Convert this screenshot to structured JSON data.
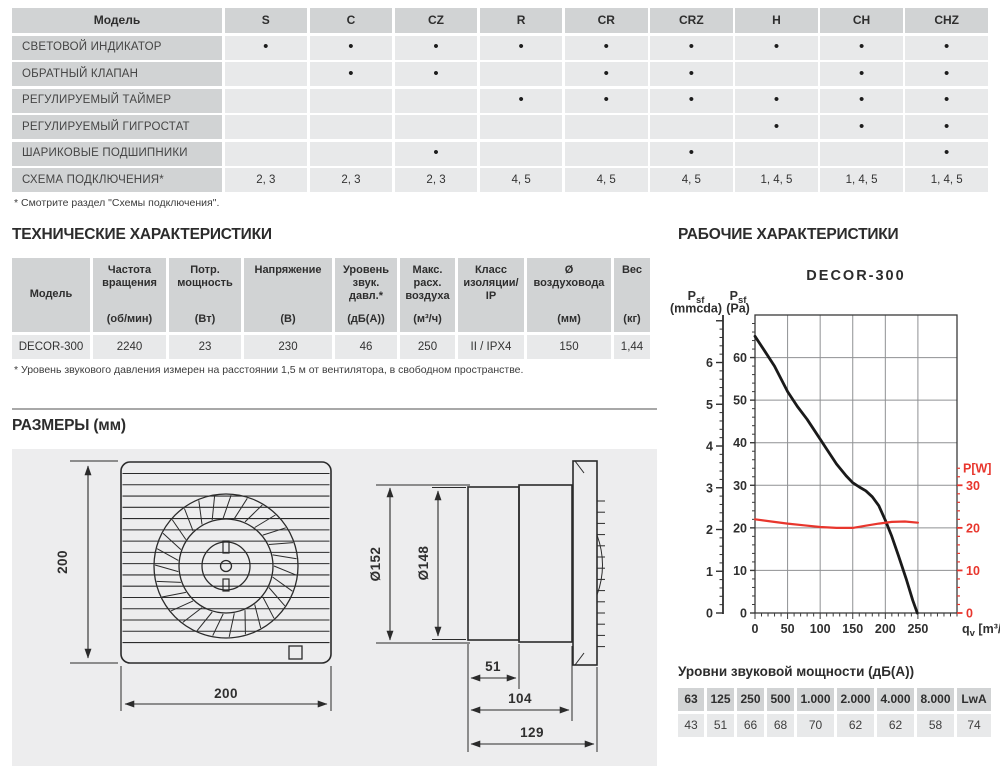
{
  "features_table": {
    "columns": [
      "Модель",
      "S",
      "C",
      "CZ",
      "R",
      "CR",
      "CRZ",
      "H",
      "CH",
      "CHZ"
    ],
    "bullet": "•",
    "rows": [
      {
        "label": "СВЕТОВОЙ ИНДИКАТОР",
        "cells": [
          "•",
          "•",
          "•",
          "•",
          "•",
          "•",
          "•",
          "•",
          "•"
        ]
      },
      {
        "label": "ОБРАТНЫЙ КЛАПАН",
        "cells": [
          "",
          "•",
          "•",
          "",
          "•",
          "•",
          "",
          "•",
          "•"
        ]
      },
      {
        "label": "РЕГУЛИРУЕМЫЙ ТАЙМЕР",
        "cells": [
          "",
          "",
          "",
          "•",
          "•",
          "•",
          "•",
          "•",
          "•"
        ]
      },
      {
        "label": "РЕГУЛИРУЕМЫЙ ГИГРОСТАТ",
        "cells": [
          "",
          "",
          "",
          "",
          "",
          "",
          "•",
          "•",
          "•"
        ]
      },
      {
        "label": "ШАРИКОВЫЕ ПОДШИПНИКИ",
        "cells": [
          "",
          "",
          "•",
          "",
          "",
          "•",
          "",
          "",
          "•"
        ]
      },
      {
        "label": "СХЕМА ПОДКЛЮЧЕНИЯ*",
        "cells": [
          "2, 3",
          "2, 3",
          "2, 3",
          "4, 5",
          "4, 5",
          "4, 5",
          "1, 4, 5",
          "1, 4, 5",
          "1, 4, 5"
        ]
      }
    ]
  },
  "footnotes": {
    "wiring": "* Смотрите раздел \"Схемы подключения\".",
    "sound_pressure": "* Уровень звукового давления измерен на расстоянии 1,5 м от вентилятора, в свободном пространстве."
  },
  "tech": {
    "heading": "ТЕХНИЧЕСКИЕ ХАРАКТЕРИСТИКИ",
    "columns": [
      {
        "title": "Модель",
        "unit": "",
        "valign": "center"
      },
      {
        "title": "Частота вращения",
        "unit": "(об/мин)",
        "valign": "between"
      },
      {
        "title": "Потр. мощность",
        "unit": "(Вт)",
        "valign": "between"
      },
      {
        "title": "Напряжение",
        "unit": "(В)",
        "valign": "between"
      },
      {
        "title": "Уровень звук. давл.*",
        "unit": "(дБ(А))",
        "valign": "between"
      },
      {
        "title": "Макс. расх. воздуха",
        "unit": "(м³/ч)",
        "valign": "between"
      },
      {
        "title": "Класс изоляции/ IP",
        "unit": "",
        "valign": "top"
      },
      {
        "title": "Ø воздуховода",
        "unit": "(мм)",
        "valign": "between"
      },
      {
        "title": "Вес",
        "unit": "(кг)",
        "valign": "between"
      }
    ],
    "row": [
      "DECOR-300",
      "2240",
      "23",
      "230",
      "46",
      "250",
      "II / IPX4",
      "150",
      "1,44"
    ]
  },
  "dimensions": {
    "heading": "РАЗМЕРЫ (мм)",
    "front_height": "200",
    "front_width": "200",
    "dia_outer": "Ø152",
    "dia_inner": "Ø148",
    "len_tube": "51",
    "len_body": "104",
    "len_total": "129"
  },
  "performance": {
    "heading": "РАБОЧИЕ ХАРАКТЕРИСТИКИ"
  },
  "chart_data": {
    "type": "line",
    "title": "DECOR-300",
    "grid": true,
    "legend": false,
    "x_axis": {
      "label": "qv [m³/h]",
      "ticks": [
        0,
        50,
        100,
        150,
        200,
        250
      ],
      "minor_step": 10,
      "max": 310
    },
    "pa_axis": {
      "label": "Psf [Pa]",
      "ticks": [
        0,
        10,
        20,
        30,
        40,
        50,
        60
      ],
      "minor_step": 2,
      "max": 70
    },
    "mm_axis": {
      "label": "Psf [mmcda]",
      "ticks": [
        0,
        1,
        2,
        3,
        4,
        5,
        6
      ],
      "minor_step": 0.2,
      "pa_per_unit": 9.80665
    },
    "power_axis": {
      "label": "P[W]",
      "ticks": [
        0,
        10,
        20,
        30
      ],
      "minor_step": 2,
      "color": "#e8362d",
      "scale": "same-as-pa"
    },
    "series": [
      {
        "name": "Psf",
        "unit": "Pa",
        "color": "#1a1a1a",
        "width": 2.8,
        "points": [
          [
            0,
            65
          ],
          [
            15,
            61.5
          ],
          [
            30,
            58
          ],
          [
            50,
            52
          ],
          [
            65,
            48.5
          ],
          [
            80,
            45.5
          ],
          [
            95,
            42
          ],
          [
            110,
            38.5
          ],
          [
            125,
            35
          ],
          [
            140,
            32.2
          ],
          [
            150,
            30.6
          ],
          [
            160,
            29.6
          ],
          [
            170,
            28.7
          ],
          [
            180,
            27.3
          ],
          [
            190,
            25.2
          ],
          [
            200,
            21.8
          ],
          [
            210,
            18
          ],
          [
            220,
            13.5
          ],
          [
            232,
            8
          ],
          [
            242,
            3
          ],
          [
            249,
            0
          ]
        ]
      },
      {
        "name": "P",
        "unit": "W",
        "color": "#e8362d",
        "width": 2.2,
        "points": [
          [
            0,
            22
          ],
          [
            25,
            21.5
          ],
          [
            50,
            21
          ],
          [
            75,
            20.6
          ],
          [
            100,
            20.2
          ],
          [
            125,
            20
          ],
          [
            150,
            20
          ],
          [
            170,
            20.5
          ],
          [
            190,
            21
          ],
          [
            210,
            21.4
          ],
          [
            230,
            21.5
          ],
          [
            250,
            21.2
          ]
        ]
      }
    ]
  },
  "sound": {
    "heading": "Уровни звуковой мощности (дБ(А))",
    "bands": [
      "63",
      "125",
      "250",
      "500",
      "1.000",
      "2.000",
      "4.000",
      "8.000",
      "LwA"
    ],
    "values": [
      "43",
      "51",
      "66",
      "68",
      "70",
      "62",
      "62",
      "58",
      "74"
    ]
  },
  "colors": {
    "header_cell_bg": "#d1d3d4",
    "data_cell_bg": "#e8e9ea",
    "panel_bg": "#ededee",
    "accent_red": "#e8362d",
    "grid_gray": "#8f9193",
    "text": "#3a3a3a"
  }
}
